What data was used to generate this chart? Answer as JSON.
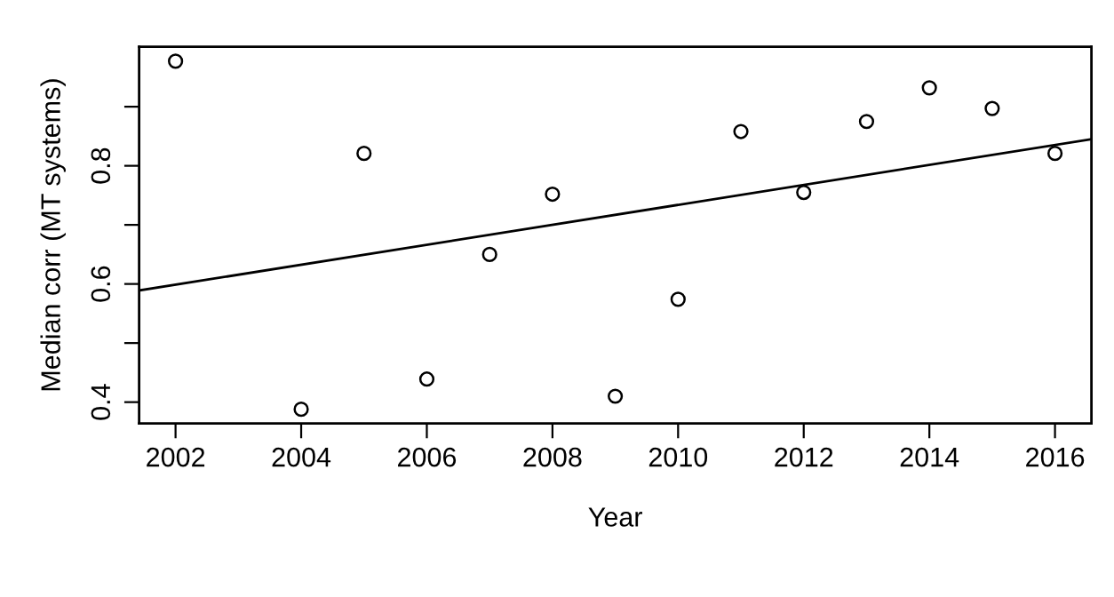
{
  "chart_data": {
    "type": "scatter",
    "xlabel": "Year",
    "ylabel": "Median corr (MT systems)",
    "x": [
      2002,
      2004,
      2005,
      2006,
      2007,
      2008,
      2009,
      2010,
      2011,
      2012,
      2013,
      2014,
      2015,
      2016
    ],
    "series": [
      {
        "color": "#000000",
        "marker": "circle",
        "values": [
          0.977,
          0.388,
          0.821,
          0.439,
          0.65,
          0.752,
          0.41,
          0.574,
          0.858,
          0.755,
          0.875,
          0.932,
          0.897,
          0.821
        ]
      },
      {
        "type": "line",
        "color": "#000000",
        "line_style": "solid",
        "x": [
          2001.42,
          2016.58
        ],
        "values": [
          0.589,
          0.845
        ]
      }
    ],
    "xlim": [
      2001.42,
      2016.58
    ],
    "ylim": [
      0.364,
      1.0015
    ],
    "xticks": [
      2002,
      2004,
      2006,
      2008,
      2010,
      2012,
      2014,
      2016
    ],
    "yticks": [
      0.4,
      {
        "value": 0.5,
        "label": null
      },
      0.6,
      {
        "value": 0.7,
        "label": null
      },
      0.8,
      {
        "value": 0.9,
        "label": null
      }
    ],
    "grid": false,
    "legend": false
  }
}
